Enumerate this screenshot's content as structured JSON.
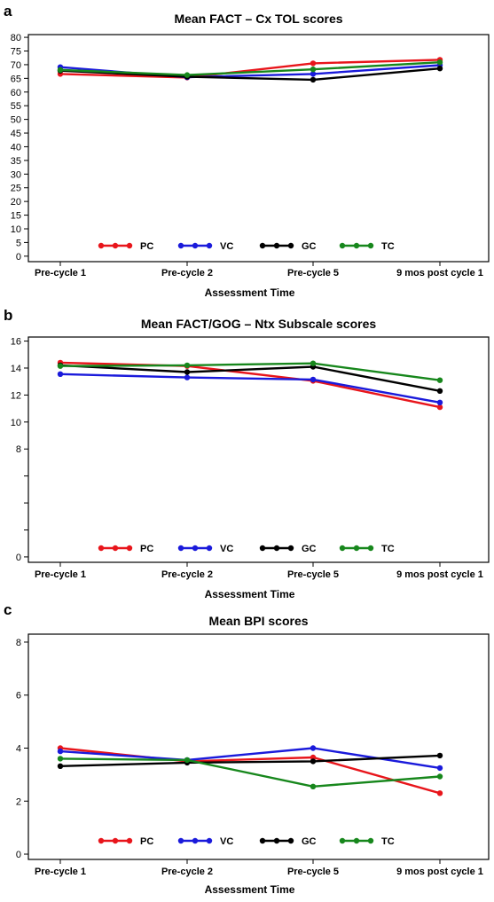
{
  "chart_data": [
    {
      "panel": "a",
      "type": "line",
      "title": "Mean FACT – Cx TOL scores",
      "xlabel": "Assessment Time",
      "ylabel": "",
      "categories": [
        "Pre-cycle 1",
        "Pre-cycle 2",
        "Pre-cycle 5",
        "9 mos post cycle 1"
      ],
      "ylim": [
        -2,
        81
      ],
      "yticks": [
        0,
        5,
        10,
        15,
        20,
        25,
        30,
        35,
        40,
        45,
        50,
        55,
        60,
        65,
        70,
        75,
        80
      ],
      "grid": false,
      "legend": "bottom-center",
      "series": [
        {
          "name": "PC",
          "color": "#e8151b",
          "values": [
            66.6,
            65.3,
            70.5,
            71.8
          ]
        },
        {
          "name": "VC",
          "color": "#1a1adb",
          "values": [
            69.1,
            65.4,
            66.6,
            69.8
          ]
        },
        {
          "name": "GC",
          "color": "#000000",
          "values": [
            67.8,
            65.6,
            64.5,
            68.6
          ]
        },
        {
          "name": "TC",
          "color": "#17871c",
          "values": [
            68.1,
            66.2,
            68.3,
            70.9
          ]
        }
      ]
    },
    {
      "panel": "b",
      "type": "line",
      "title": "Mean FACT/GOG – Ntx Subscale scores",
      "xlabel": "Assessment Time",
      "ylabel": "",
      "categories": [
        "Pre-cycle 1",
        "Pre-cycle 2",
        "Pre-cycle 5",
        "9 mos post cycle 1"
      ],
      "ylim": [
        -0.4,
        16.3
      ],
      "yticks": [
        0,
        2,
        4,
        6,
        8,
        10,
        12,
        14,
        16
      ],
      "ytick_labels": [
        "0",
        "",
        "",
        "",
        "8",
        "10",
        "12",
        "14",
        "16"
      ],
      "grid": false,
      "legend": "bottom-center",
      "series": [
        {
          "name": "PC",
          "color": "#e8151b",
          "values": [
            14.4,
            14.15,
            13.05,
            11.1
          ]
        },
        {
          "name": "VC",
          "color": "#1a1adb",
          "values": [
            13.55,
            13.3,
            13.15,
            11.45
          ]
        },
        {
          "name": "GC",
          "color": "#000000",
          "values": [
            14.2,
            13.7,
            14.1,
            12.3
          ]
        },
        {
          "name": "TC",
          "color": "#17871c",
          "values": [
            14.15,
            14.2,
            14.35,
            13.1
          ]
        }
      ]
    },
    {
      "panel": "c",
      "type": "line",
      "title": "Mean BPI scores",
      "xlabel": "Assessment Time",
      "ylabel": "",
      "categories": [
        "Pre-cycle 1",
        "Pre-cycle 2",
        "Pre-cycle 5",
        "9 mos post cycle 1"
      ],
      "ylim": [
        -0.2,
        8.3
      ],
      "yticks": [
        0,
        2,
        4,
        6,
        8
      ],
      "grid": false,
      "legend": "bottom-center",
      "series": [
        {
          "name": "PC",
          "color": "#e8151b",
          "values": [
            4.0,
            3.5,
            3.65,
            2.3
          ]
        },
        {
          "name": "VC",
          "color": "#1a1adb",
          "values": [
            3.88,
            3.55,
            4.0,
            3.25
          ]
        },
        {
          "name": "GC",
          "color": "#000000",
          "values": [
            3.32,
            3.45,
            3.5,
            3.72
          ]
        },
        {
          "name": "TC",
          "color": "#17871c",
          "values": [
            3.6,
            3.55,
            2.55,
            2.93
          ]
        }
      ]
    }
  ]
}
